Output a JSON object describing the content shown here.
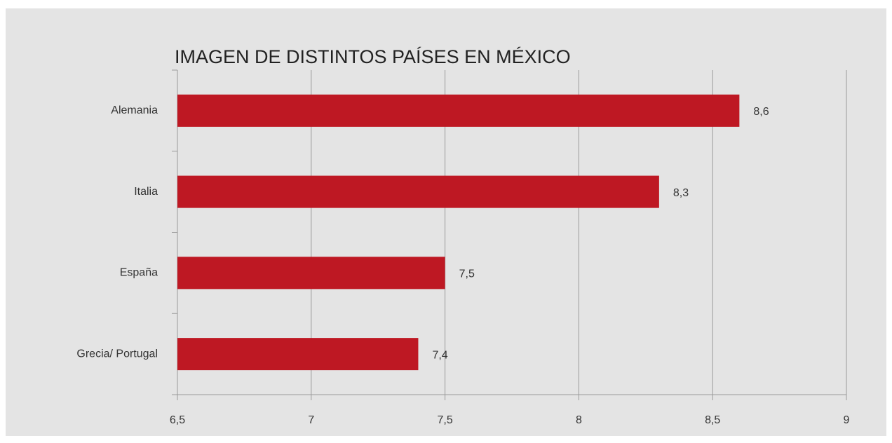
{
  "chart_data": {
    "type": "bar",
    "orientation": "horizontal",
    "title": "IMAGEN DE DISTINTOS PAÍSES EN MÉXICO",
    "categories": [
      "Alemania",
      "Italia",
      "España",
      "Grecia/ Portugal"
    ],
    "values": [
      8.6,
      8.3,
      7.5,
      7.4
    ],
    "value_labels": [
      "8,6",
      "8,3",
      "7,5",
      "7,4"
    ],
    "color": "#be1823",
    "xlim": [
      6.5,
      9
    ],
    "xticks": [
      {
        "value": 6.5,
        "label": "6,5"
      },
      7,
      {
        "value": 7.5,
        "label": "7,5"
      },
      8,
      {
        "value": 8.5,
        "label": "8,5"
      },
      9
    ],
    "grid": true
  }
}
